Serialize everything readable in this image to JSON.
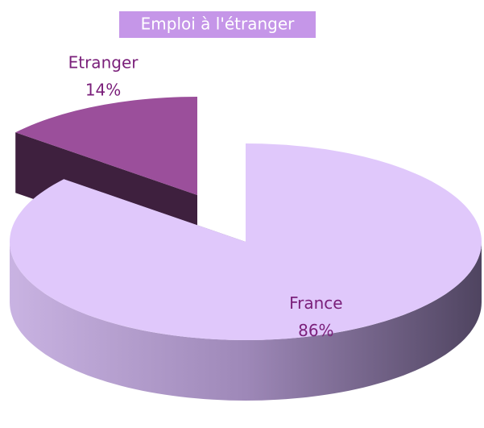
{
  "chart_data": {
    "type": "pie",
    "title": "Emploi à l'étranger",
    "categories": [
      "France",
      "Etranger"
    ],
    "values": [
      86,
      14
    ],
    "value_labels": [
      "86%",
      "14%"
    ],
    "colors": [
      "#e0c8fb",
      "#9b4f9b"
    ]
  }
}
